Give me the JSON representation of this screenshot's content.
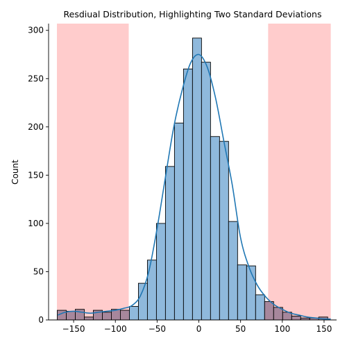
{
  "chart_data": {
    "type": "bar",
    "title": "Resdiual Distribution, Highlighting Two Standard Deviations",
    "xlabel": "",
    "ylabel": "Count",
    "xlim": [
      -180,
      165
    ],
    "ylim": [
      0,
      307
    ],
    "x_ticks": [
      -150,
      -100,
      -50,
      0,
      50,
      100,
      150
    ],
    "y_ticks": [
      0,
      50,
      100,
      150,
      200,
      250,
      300
    ],
    "bin_width": 10.8,
    "bins": [
      {
        "start": -169.6,
        "count": 10
      },
      {
        "start": -158.8,
        "count": 9
      },
      {
        "start": -148.0,
        "count": 11
      },
      {
        "start": -137.2,
        "count": 3
      },
      {
        "start": -126.4,
        "count": 10
      },
      {
        "start": -115.6,
        "count": 8
      },
      {
        "start": -104.8,
        "count": 11
      },
      {
        "start": -94.0,
        "count": 10
      },
      {
        "start": -83.2,
        "count": 14
      },
      {
        "start": -72.4,
        "count": 38
      },
      {
        "start": -61.6,
        "count": 62
      },
      {
        "start": -50.8,
        "count": 100
      },
      {
        "start": -40.0,
        "count": 159
      },
      {
        "start": -29.2,
        "count": 204
      },
      {
        "start": -18.4,
        "count": 260
      },
      {
        "start": -7.6,
        "count": 292
      },
      {
        "start": 3.2,
        "count": 267
      },
      {
        "start": 14.0,
        "count": 190
      },
      {
        "start": 24.8,
        "count": 185
      },
      {
        "start": 35.6,
        "count": 102
      },
      {
        "start": 46.4,
        "count": 57
      },
      {
        "start": 57.2,
        "count": 56
      },
      {
        "start": 68.0,
        "count": 26
      },
      {
        "start": 78.8,
        "count": 19
      },
      {
        "start": 89.6,
        "count": 13
      },
      {
        "start": 100.4,
        "count": 8
      },
      {
        "start": 111.2,
        "count": 4
      },
      {
        "start": 122.0,
        "count": 2
      },
      {
        "start": 132.8,
        "count": 2
      },
      {
        "start": 143.6,
        "count": 3
      }
    ],
    "kde": {
      "x": [
        -169,
        -160,
        -150,
        -140,
        -130,
        -120,
        -110,
        -100,
        -90,
        -80,
        -70,
        -60,
        -50,
        -40,
        -30,
        -20,
        -10,
        0,
        10,
        20,
        30,
        40,
        50,
        60,
        70,
        80,
        90,
        100,
        110,
        120,
        130,
        140,
        150,
        158
      ],
      "y": [
        5,
        8,
        9,
        8,
        7,
        8,
        9,
        10,
        12,
        15,
        25,
        50,
        95,
        148,
        200,
        238,
        266,
        275,
        262,
        230,
        185,
        140,
        85,
        55,
        36,
        24,
        16,
        11,
        7,
        5,
        3,
        2,
        1,
        1
      ]
    },
    "highlight_regions": [
      {
        "x0": -170,
        "x1": -84
      },
      {
        "x0": 83,
        "x1": 158
      }
    ],
    "colors": {
      "bar_fill": "#8fb9dc",
      "bar_edge": "#000000",
      "kde_line": "#1f77b4",
      "highlight": "#ff9999",
      "overlap_bar": "#a7879c"
    }
  }
}
